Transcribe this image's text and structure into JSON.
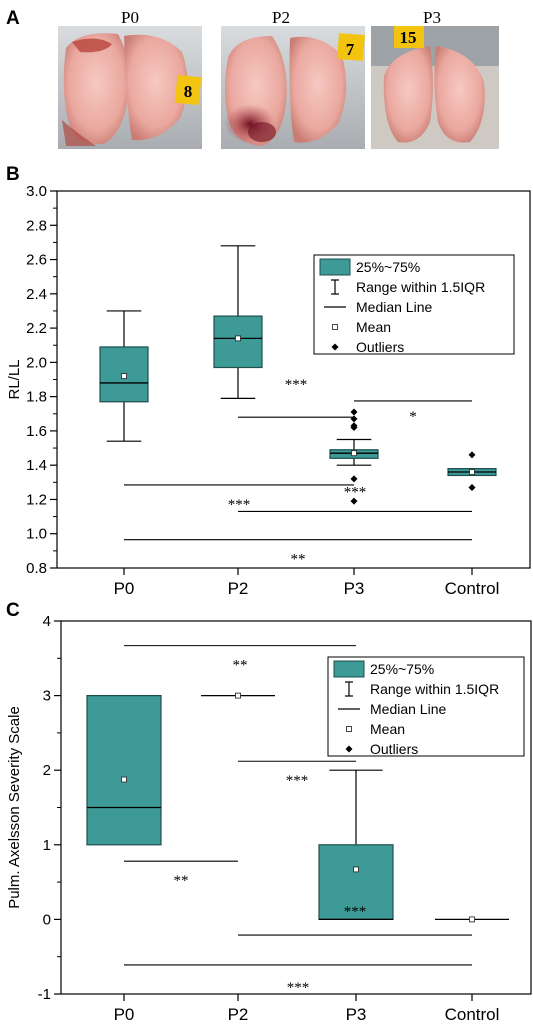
{
  "panels": {
    "a": "A",
    "b": "B",
    "c": "C"
  },
  "photos": [
    {
      "label": "P0",
      "tag": "8"
    },
    {
      "label": "P2",
      "tag": "7"
    },
    {
      "label": "P3",
      "tag": "15"
    }
  ],
  "legend": {
    "box": "25%~75%",
    "range": "Range within 1.5IQR",
    "median": "Median Line",
    "mean": "Mean",
    "outliers": "Outliers"
  },
  "colors": {
    "box_fill": "#3d9a96",
    "box_edge": "#1f4f4d"
  },
  "chart_data": [
    {
      "type": "box",
      "ylabel": "RL/LL",
      "ylim": [
        0.8,
        3.0
      ],
      "yticks": [
        "0.8",
        "1.0",
        "1.2",
        "1.4",
        "1.6",
        "1.8",
        "2.0",
        "2.2",
        "2.4",
        "2.6",
        "2.8",
        "3.0"
      ],
      "categories": [
        "P0",
        "P2",
        "P3",
        "Control"
      ],
      "legend_position": "top-right",
      "boxes": [
        {
          "name": "P0",
          "q1": 1.77,
          "median": 1.88,
          "q3": 2.09,
          "whisker_low": 1.54,
          "whisker_high": 2.3,
          "mean": 1.92,
          "outliers": []
        },
        {
          "name": "P2",
          "q1": 1.97,
          "median": 2.14,
          "q3": 2.27,
          "whisker_low": 1.79,
          "whisker_high": 2.68,
          "mean": 2.14,
          "outliers": []
        },
        {
          "name": "P3",
          "q1": 1.44,
          "median": 1.47,
          "q3": 1.49,
          "whisker_low": 1.4,
          "whisker_high": 1.55,
          "mean": 1.47,
          "outliers": [
            1.71,
            1.67,
            1.63,
            1.62,
            1.32,
            1.19
          ]
        },
        {
          "name": "Control",
          "q1": 1.34,
          "median": 1.36,
          "q3": 1.38,
          "whisker_low": 1.34,
          "whisker_high": 1.38,
          "mean": 1.36,
          "outliers": [
            1.46,
            1.27
          ]
        }
      ],
      "significance": [
        {
          "from": 0,
          "to": 3,
          "y": 0.965,
          "label": "**"
        },
        {
          "from": 0,
          "to": 2,
          "y": 1.285,
          "label": "***"
        },
        {
          "from": 1,
          "to": 2,
          "y": 1.68,
          "label": "***"
        },
        {
          "from": 1,
          "to": 3,
          "y": 1.13,
          "label": "***"
        },
        {
          "from": 2,
          "to": 3,
          "y": 1.775,
          "label": "*"
        }
      ]
    },
    {
      "type": "box",
      "ylabel": "Pulm. Axelsson Severity Scale",
      "ylim": [
        -1,
        4
      ],
      "yticks": [
        "-1",
        "0",
        "1",
        "2",
        "3",
        "4"
      ],
      "categories": [
        "P0",
        "P2",
        "P3",
        "Control"
      ],
      "legend_position": "top-right",
      "boxes": [
        {
          "name": "P0",
          "q1": 1.0,
          "median": 1.5,
          "q3": 3.0,
          "whisker_low": 1.0,
          "whisker_high": 3.0,
          "mean": 1.875,
          "outliers": []
        },
        {
          "name": "P2",
          "q1": 3.0,
          "median": 3.0,
          "q3": 3.0,
          "whisker_low": 3.0,
          "whisker_high": 3.0,
          "mean": 3.0,
          "outliers": []
        },
        {
          "name": "P3",
          "q1": 0.0,
          "median": 0.0,
          "q3": 1.0,
          "whisker_low": 0.0,
          "whisker_high": 2.0,
          "mean": 0.67,
          "outliers": []
        },
        {
          "name": "Control",
          "q1": 0.0,
          "median": 0.0,
          "q3": 0.0,
          "whisker_low": 0.0,
          "whisker_high": 0.0,
          "mean": 0.0,
          "outliers": []
        }
      ],
      "significance": [
        {
          "from": 0,
          "to": 2,
          "y": 3.67,
          "label": "**"
        },
        {
          "from": 0,
          "to": 1,
          "y": 0.78,
          "label": "**"
        },
        {
          "from": 1,
          "to": 2,
          "y": 2.12,
          "label": "***"
        },
        {
          "from": 1,
          "to": 3,
          "y": -0.21,
          "label": "***"
        },
        {
          "from": 0,
          "to": 3,
          "y": -0.61,
          "label": "***"
        }
      ]
    }
  ]
}
